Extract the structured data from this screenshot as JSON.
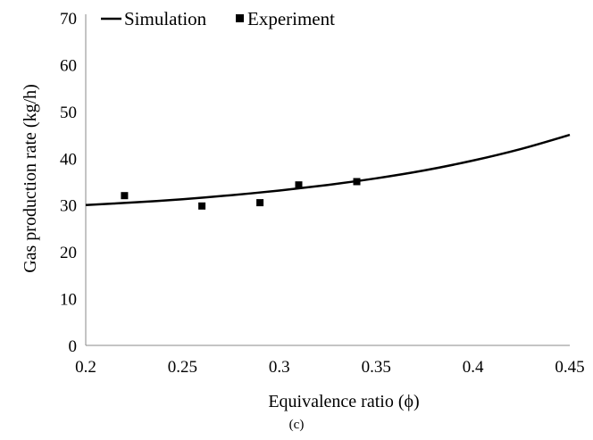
{
  "chart_data": {
    "type": "line",
    "xlabel": "Equivalence ratio (ϕ)",
    "ylabel": "Gas production rate (kg/h)",
    "caption": "(c)",
    "xlim": [
      0.2,
      0.45
    ],
    "ylim": [
      0,
      70
    ],
    "x_ticks": [
      0.2,
      0.25,
      0.3,
      0.35,
      0.4,
      0.45
    ],
    "x_tick_labels": [
      "0.2",
      "0.25",
      "0.3",
      "0.35",
      "0.4",
      "0.45"
    ],
    "y_ticks": [
      0,
      10,
      20,
      30,
      40,
      50,
      60,
      70
    ],
    "y_tick_labels": [
      "0",
      "10",
      "20",
      "30",
      "40",
      "50",
      "60",
      "70"
    ],
    "grid": false,
    "legend_position": "top",
    "series": [
      {
        "name": "Simulation",
        "kind": "line",
        "color": "#000000",
        "x": [
          0.2,
          0.225,
          0.25,
          0.275,
          0.3,
          0.325,
          0.35,
          0.375,
          0.4,
          0.425,
          0.45
        ],
        "y": [
          30.0,
          30.55,
          31.25,
          32.1,
          33.1,
          34.3,
          35.7,
          37.4,
          39.5,
          42.0,
          45.0
        ]
      },
      {
        "name": "Experiment",
        "kind": "scatter",
        "marker": "square",
        "color": "#000000",
        "x": [
          0.22,
          0.26,
          0.29,
          0.31,
          0.34
        ],
        "y": [
          32.0,
          29.8,
          30.5,
          34.3,
          35.0
        ]
      }
    ]
  }
}
